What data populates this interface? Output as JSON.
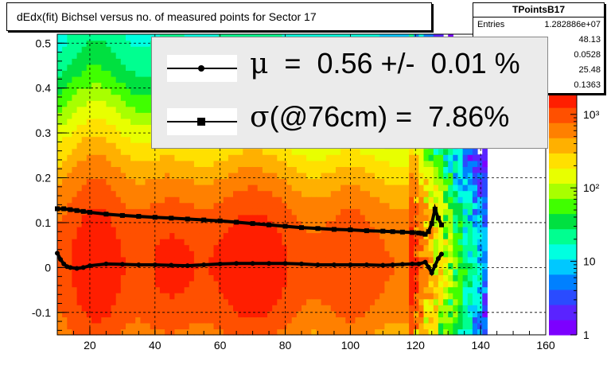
{
  "title": "dEdx(fit) Bichsel versus no. of measured points for Sector 17",
  "stats": {
    "name": "TPointsB17",
    "rows": [
      {
        "key": "Entries",
        "value": "1.282886e+07"
      },
      {
        "key": "",
        "value": "48.13"
      },
      {
        "key": "",
        "value": "0.0528"
      },
      {
        "key": "",
        "value": "25.48"
      },
      {
        "key": "",
        "value": "0.1363"
      }
    ]
  },
  "legend": {
    "entries": [
      {
        "symbol": "μ",
        "text": "  =  0.56 +/-  0.01 %"
      },
      {
        "symbol": "σ",
        "text": "(@76cm) =  7.86%"
      }
    ]
  },
  "colors": {
    "palette": [
      "#7c00ff",
      "#5a23ff",
      "#2a4bff",
      "#0080ff",
      "#00c8ff",
      "#00ffe0",
      "#00ff90",
      "#00e040",
      "#40ff00",
      "#a8ff00",
      "#e8ff00",
      "#ffe000",
      "#ffb000",
      "#ff8000",
      "#ff5000",
      "#ff1e00"
    ]
  },
  "chart_data": {
    "type": "heatmap",
    "title": "dEdx(fit) Bichsel versus no. of measured points for Sector 17",
    "xlim": [
      10,
      160
    ],
    "ylim": [
      -0.15,
      0.52
    ],
    "x_ticks": [
      20,
      40,
      60,
      80,
      100,
      120,
      140,
      160
    ],
    "y_ticks": [
      -0.1,
      0,
      0.1,
      0.2,
      0.3,
      0.4,
      0.5
    ],
    "colorbar": {
      "scale": "log",
      "min": 1,
      "max": 2000,
      "ticks": [
        {
          "value": 1,
          "label": "1"
        },
        {
          "value": 10,
          "label": "10"
        },
        {
          "value": 100,
          "label": "10²"
        },
        {
          "value": 1000,
          "label": "10³"
        }
      ]
    },
    "grid": true,
    "series": [
      {
        "name": "μ",
        "marker": "circle",
        "x": [
          10,
          11,
          12,
          13,
          14,
          16,
          18,
          20,
          25,
          30,
          35,
          40,
          45,
          50,
          55,
          60,
          65,
          70,
          75,
          80,
          85,
          90,
          95,
          100,
          105,
          110,
          113,
          116,
          119,
          121,
          123,
          124,
          125,
          126,
          127,
          128
        ],
        "y": [
          0.032,
          0.018,
          0.008,
          0.002,
          0.0,
          -0.002,
          0.0,
          0.004,
          0.008,
          0.007,
          0.006,
          0.006,
          0.005,
          0.004,
          0.006,
          0.008,
          0.009,
          0.009,
          0.009,
          0.009,
          0.008,
          0.006,
          0.006,
          0.006,
          0.006,
          0.005,
          0.006,
          0.007,
          0.008,
          0.008,
          0.012,
          0.001,
          -0.012,
          0.004,
          0.02,
          0.03
        ]
      },
      {
        "name": "σ(@76cm)",
        "marker": "square",
        "x": [
          10,
          12,
          14,
          16,
          18,
          20,
          25,
          30,
          35,
          40,
          45,
          50,
          55,
          60,
          65,
          70,
          75,
          80,
          85,
          90,
          95,
          100,
          105,
          110,
          113,
          116,
          119,
          121,
          122,
          123,
          124,
          125,
          126,
          127,
          128
        ],
        "y": [
          0.131,
          0.131,
          0.129,
          0.127,
          0.125,
          0.123,
          0.119,
          0.116,
          0.114,
          0.112,
          0.11,
          0.108,
          0.106,
          0.104,
          0.101,
          0.098,
          0.095,
          0.092,
          0.089,
          0.087,
          0.085,
          0.084,
          0.082,
          0.081,
          0.08,
          0.079,
          0.078,
          0.077,
          0.076,
          0.074,
          0.08,
          0.098,
          0.13,
          0.11,
          0.095
        ]
      }
    ]
  }
}
